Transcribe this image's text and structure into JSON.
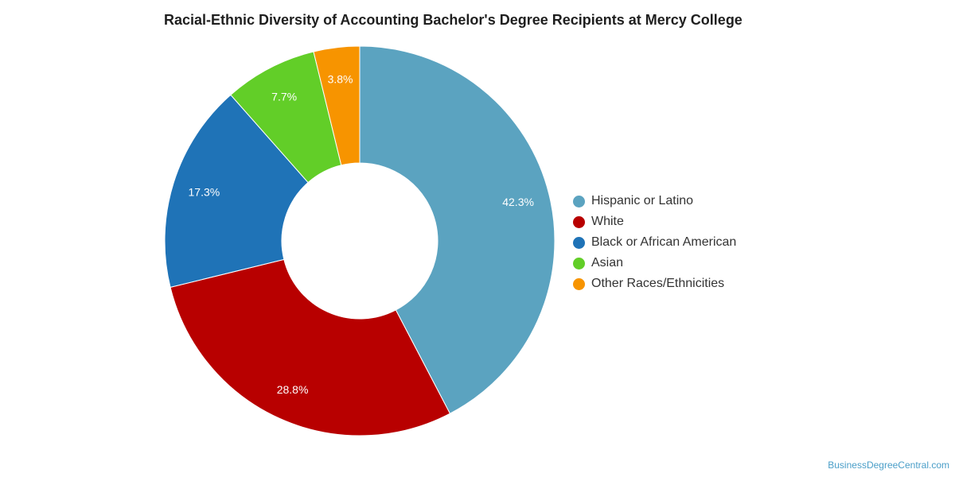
{
  "chart_data": {
    "type": "pie",
    "title": "Racial-Ethnic Diversity of Accounting Bachelor's Degree Recipients at Mercy College",
    "donut": true,
    "legend_position": "right",
    "slices": [
      {
        "name": "Hispanic or Latino",
        "value": 42.3,
        "label": "42.3%",
        "color": "#5ba3c0"
      },
      {
        "name": "White",
        "value": 28.8,
        "label": "28.8%",
        "color": "#b80000"
      },
      {
        "name": "Black or African American",
        "value": 17.3,
        "label": "17.3%",
        "color": "#1f73b7"
      },
      {
        "name": "Asian",
        "value": 7.7,
        "label": "7.7%",
        "color": "#62ce28"
      },
      {
        "name": "Other Races/Ethnicities",
        "value": 3.8,
        "label": "3.8%",
        "color": "#f79400"
      }
    ]
  },
  "watermark": "BusinessDegreeCentral.com"
}
